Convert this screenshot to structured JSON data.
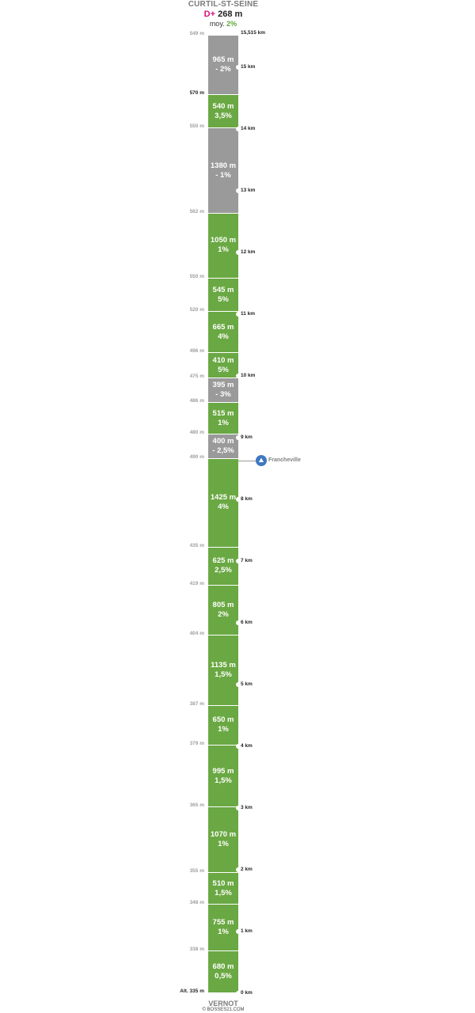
{
  "header": {
    "title": "CURTIL-ST-SEINE",
    "dplus_prefix": "D+",
    "dplus_value": "268 m",
    "moy_label": "moy.",
    "moy_value": "2%"
  },
  "start_altitude": "549 m",
  "total_distance": "15,515 km",
  "footer": {
    "city": "VERNOT",
    "copyright": "© BOSSES21.COM"
  },
  "colors": {
    "climb": "#6aa843",
    "descent": "#9a9a9a",
    "poi": "#3f78c2",
    "dplus": "#d4147c"
  },
  "poi": {
    "label": "Francheville",
    "icon": "cyclist-icon"
  },
  "chart_data": {
    "type": "table",
    "description_units": {
      "distance": "m",
      "grade": "%"
    },
    "segments_top_to_bottom": [
      {
        "length": "965 m",
        "grade": "- 2%",
        "direction": "down",
        "length_m": 965
      },
      {
        "length": "540 m",
        "grade": "3,5%",
        "direction": "up",
        "length_m": 540
      },
      {
        "length": "1380 m",
        "grade": "- 1%",
        "direction": "down",
        "length_m": 1380
      },
      {
        "length": "1050 m",
        "grade": "1%",
        "direction": "up",
        "length_m": 1050
      },
      {
        "length": "545 m",
        "grade": "5%",
        "direction": "up",
        "length_m": 545
      },
      {
        "length": "665 m",
        "grade": "4%",
        "direction": "up",
        "length_m": 665
      },
      {
        "length": "410 m",
        "grade": "5%",
        "direction": "up",
        "length_m": 410
      },
      {
        "length": "395 m",
        "grade": "- 3%",
        "direction": "down",
        "length_m": 395
      },
      {
        "length": "515 m",
        "grade": "1%",
        "direction": "up",
        "length_m": 515
      },
      {
        "length": "400 m",
        "grade": "- 2,5%",
        "direction": "down",
        "length_m": 400
      },
      {
        "length": "1425 m",
        "grade": "4%",
        "direction": "up",
        "length_m": 1425
      },
      {
        "length": "625 m",
        "grade": "2,5%",
        "direction": "up",
        "length_m": 625
      },
      {
        "length": "805 m",
        "grade": "2%",
        "direction": "up",
        "length_m": 805
      },
      {
        "length": "1135 m",
        "grade": "1,5%",
        "direction": "up",
        "length_m": 1135
      },
      {
        "length": "650 m",
        "grade": "1%",
        "direction": "up",
        "length_m": 650
      },
      {
        "length": "995 m",
        "grade": "1,5%",
        "direction": "up",
        "length_m": 995
      },
      {
        "length": "1070 m",
        "grade": "1%",
        "direction": "up",
        "length_m": 1070
      },
      {
        "length": "510 m",
        "grade": "1,5%",
        "direction": "up",
        "length_m": 510
      },
      {
        "length": "755 m",
        "grade": "1%",
        "direction": "up",
        "length_m": 755
      },
      {
        "length": "680 m",
        "grade": "0,5%",
        "direction": "up",
        "length_m": 680
      }
    ],
    "boundary_altitudes_below_segments": [
      {
        "label": "570 m",
        "dark": true
      },
      {
        "label": "550 m",
        "dark": false
      },
      {
        "label": "562 m",
        "dark": false
      },
      {
        "label": "550 m",
        "dark": false
      },
      {
        "label": "520 m",
        "dark": false
      },
      {
        "label": "496 m",
        "dark": false
      },
      {
        "label": "475 m",
        "dark": false
      },
      {
        "label": "486 m",
        "dark": false
      },
      {
        "label": "480 m",
        "dark": false
      },
      {
        "label": "490 m",
        "dark": false
      },
      {
        "label": "435 m",
        "dark": false
      },
      {
        "label": "419 m",
        "dark": false
      },
      {
        "label": "404 m",
        "dark": false
      },
      {
        "label": "387 m",
        "dark": false
      },
      {
        "label": "379 m",
        "dark": false
      },
      {
        "label": "365 m",
        "dark": false
      },
      {
        "label": "355 m",
        "dark": false
      },
      {
        "label": "348 m",
        "dark": false
      },
      {
        "label": "338 m",
        "dark": false
      },
      {
        "label": "Alt. 335 m",
        "dark": true
      }
    ],
    "km_markers": [
      {
        "km": 15,
        "label": "15 km"
      },
      {
        "km": 14,
        "label": "14 km"
      },
      {
        "km": 13,
        "label": "13 km"
      },
      {
        "km": 12,
        "label": "12 km"
      },
      {
        "km": 11,
        "label": "11 km"
      },
      {
        "km": 10,
        "label": "10 km"
      },
      {
        "km": 9,
        "label": "9 km"
      },
      {
        "km": 8,
        "label": "8 km"
      },
      {
        "km": 7,
        "label": "7 km"
      },
      {
        "km": 6,
        "label": "6 km"
      },
      {
        "km": 5,
        "label": "5 km"
      },
      {
        "km": 4,
        "label": "4 km"
      },
      {
        "km": 3,
        "label": "3 km"
      },
      {
        "km": 2,
        "label": "2 km"
      },
      {
        "km": 1,
        "label": "1 km"
      },
      {
        "km": 0,
        "label": "0 km"
      }
    ],
    "poi_km": 8.65
  }
}
